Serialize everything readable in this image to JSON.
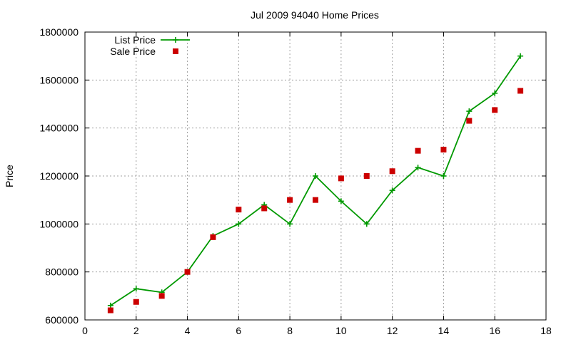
{
  "chart_data": {
    "type": "line",
    "title": "Jul 2009 94040 Home Prices",
    "xlabel": "",
    "ylabel": "Price",
    "xlim": [
      0,
      18
    ],
    "ylim": [
      600000,
      1800000
    ],
    "x_ticks": [
      "0",
      "2",
      "4",
      "6",
      "8",
      "10",
      "12",
      "14",
      "16",
      "18"
    ],
    "y_ticks": [
      "600000",
      "800000",
      "1000000",
      "1200000",
      "1400000",
      "1600000",
      "1800000"
    ],
    "grid": true,
    "legend_position": "top-left",
    "series": [
      {
        "name": "List Price",
        "style": "line+cross",
        "color": "#009900",
        "x": [
          1,
          2,
          3,
          4,
          5,
          6,
          7,
          8,
          9,
          10,
          11,
          12,
          13,
          14,
          15,
          16,
          17
        ],
        "y": [
          660000,
          730000,
          715000,
          800000,
          950000,
          1000000,
          1080000,
          1000000,
          1200000,
          1095000,
          1000000,
          1140000,
          1235000,
          1200000,
          1470000,
          1545000,
          1700000
        ]
      },
      {
        "name": "Sale Price",
        "style": "square",
        "color": "#cc0000",
        "x": [
          1,
          2,
          3,
          4,
          5,
          6,
          7,
          8,
          9,
          10,
          11,
          12,
          13,
          14,
          15,
          16,
          17
        ],
        "y": [
          640000,
          675000,
          700000,
          800000,
          945000,
          1060000,
          1065000,
          1100000,
          1100000,
          1190000,
          1200000,
          1220000,
          1305000,
          1310000,
          1430000,
          1475000,
          1555000
        ]
      }
    ]
  }
}
